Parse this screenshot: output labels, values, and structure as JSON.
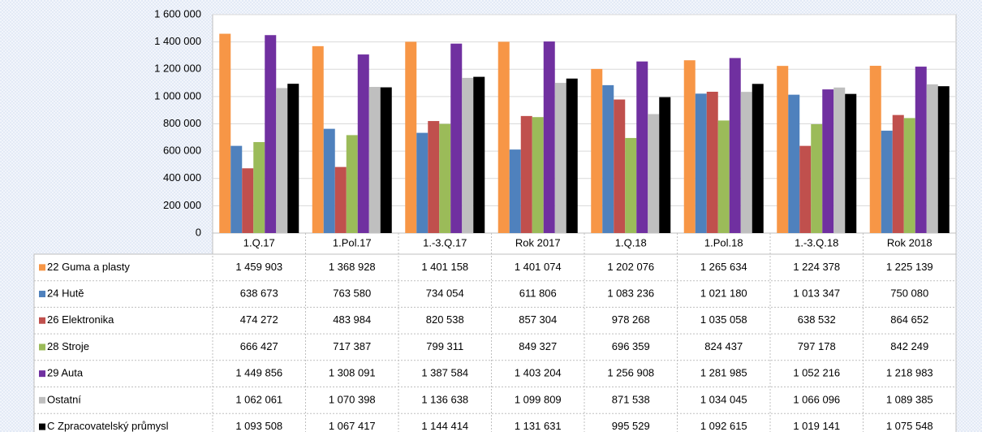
{
  "chart_data": {
    "type": "bar",
    "categories": [
      "1.Q.17",
      "1.Pol.17",
      "1.-3.Q.17",
      "Rok 2017",
      "1.Q.18",
      "1.Pol.18",
      "1.-3.Q.18",
      "Rok 2018"
    ],
    "series": [
      {
        "name": "22 Guma a plasty",
        "color": "#f79646",
        "values": [
          1459903,
          1368928,
          1401158,
          1401074,
          1202076,
          1265634,
          1224378,
          1225139
        ],
        "value_labels": [
          "1 459 903",
          "1 368 928",
          "1 401 158",
          "1 401 074",
          "1 202 076",
          "1 265 634",
          "1 224 378",
          "1 225 139"
        ]
      },
      {
        "name": "24 Hutě",
        "color": "#4f81bd",
        "values": [
          638673,
          763580,
          734054,
          611806,
          1083236,
          1021180,
          1013347,
          750080
        ],
        "value_labels": [
          "638 673",
          "763 580",
          "734 054",
          "611 806",
          "1 083 236",
          "1 021 180",
          "1 013 347",
          "750 080"
        ]
      },
      {
        "name": "26 Elektronika",
        "color": "#c0504d",
        "values": [
          474272,
          483984,
          820538,
          857304,
          978268,
          1035058,
          638532,
          864652
        ],
        "value_labels": [
          "474 272",
          "483 984",
          "820 538",
          "857 304",
          "978 268",
          "1 035 058",
          "638 532",
          "864 652"
        ]
      },
      {
        "name": "28 Stroje",
        "color": "#9bbb59",
        "values": [
          666427,
          717387,
          799311,
          849327,
          696359,
          824437,
          797178,
          842249
        ],
        "value_labels": [
          "666 427",
          "717 387",
          "799 311",
          "849 327",
          "696 359",
          "824 437",
          "797 178",
          "842 249"
        ]
      },
      {
        "name": "29 Auta",
        "color": "#7030a0",
        "values": [
          1449856,
          1308091,
          1387584,
          1403204,
          1256908,
          1281985,
          1052216,
          1218983
        ],
        "value_labels": [
          "1 449 856",
          "1 308 091",
          "1 387 584",
          "1 403 204",
          "1 256 908",
          "1 281 985",
          "1 052 216",
          "1 218 983"
        ]
      },
      {
        "name": "Ostatní",
        "color": "#bfbfbf",
        "values": [
          1062061,
          1070398,
          1136638,
          1099809,
          871538,
          1034045,
          1066096,
          1089385
        ],
        "value_labels": [
          "1 062 061",
          "1 070 398",
          "1 136 638",
          "1 099 809",
          "871 538",
          "1 034 045",
          "1 066 096",
          "1 089 385"
        ]
      },
      {
        "name": "C Zpracovatelský průmysl",
        "color": "#000000",
        "values": [
          1093508,
          1067417,
          1144414,
          1131631,
          995529,
          1092615,
          1019141,
          1075548
        ],
        "value_labels": [
          "1 093 508",
          "1 067 417",
          "1 144 414",
          "1 131 631",
          "995 529",
          "1 092 615",
          "1 019 141",
          "1 075 548"
        ]
      }
    ],
    "ylim": [
      0,
      1600000
    ],
    "yticks": [
      0,
      {
        "value": 200000,
        "label": "200 000"
      },
      {
        "value": 400000,
        "label": "400 000"
      },
      {
        "value": 600000,
        "label": "600 000"
      },
      {
        "value": 800000,
        "label": "800 000"
      },
      {
        "value": 1000000,
        "label": "1 000 000"
      },
      {
        "value": 1200000,
        "label": "1 200 000"
      },
      {
        "value": 1400000,
        "label": "1 400 000"
      },
      {
        "value": 1600000,
        "label": "1 600 000"
      }
    ],
    "grid": true
  }
}
